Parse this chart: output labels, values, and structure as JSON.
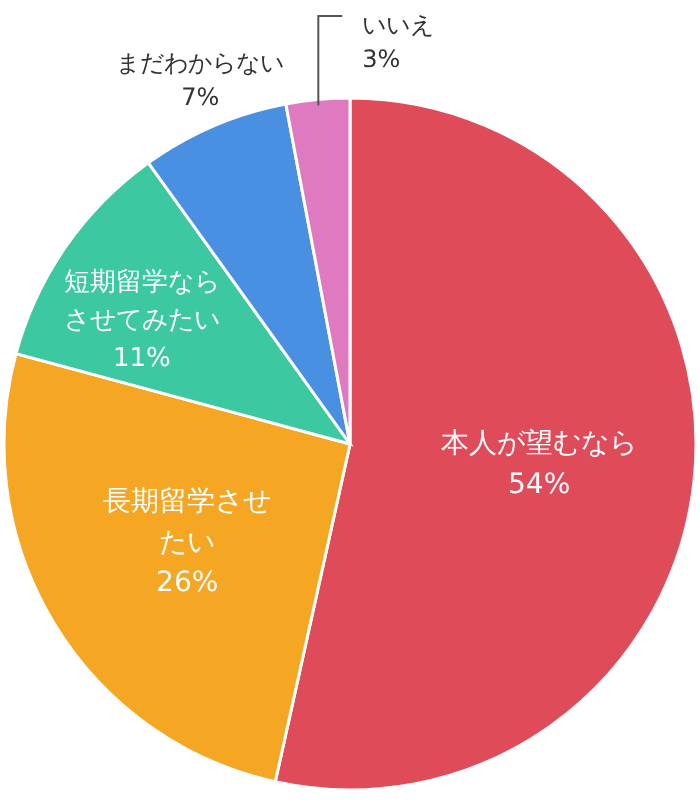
{
  "chart_data": {
    "type": "pie",
    "categories": [
      "本人が望むなら",
      "長期留学させたい",
      "短期留学ならさせてみたい",
      "まだわからない",
      "いいえ"
    ],
    "values": [
      54,
      26,
      11,
      7,
      3
    ],
    "value_labels": [
      "54%",
      "26%",
      "11%",
      "7%",
      "3%"
    ],
    "colors": [
      "#e04b5a",
      "#f5a623",
      "#3cc8a0",
      "#4a90e2",
      "#e07ac0"
    ]
  }
}
